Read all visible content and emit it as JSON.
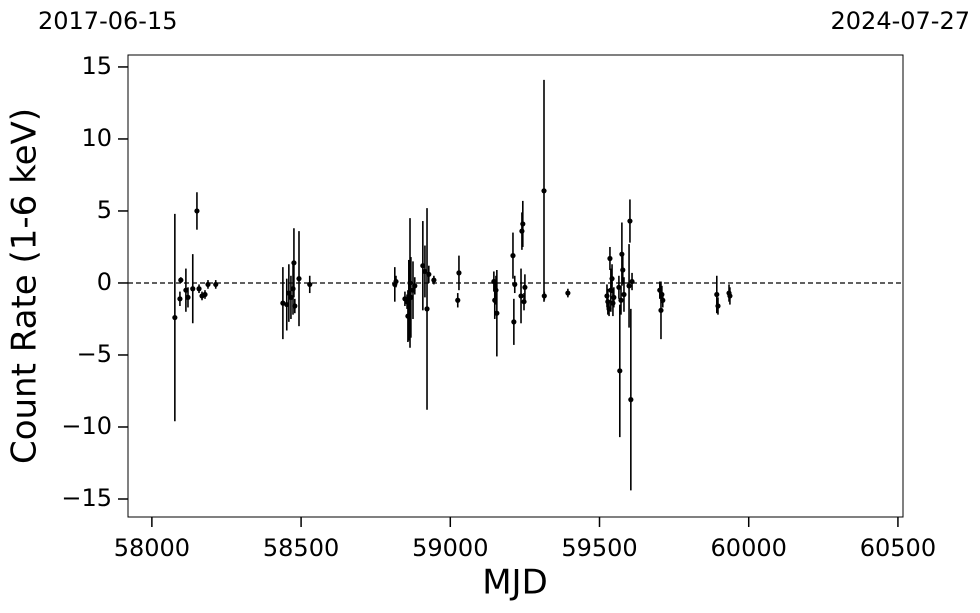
{
  "chart_data": {
    "type": "errorbar",
    "xlabel": "MJD",
    "ylabel": "Count Rate (1-6 keV)",
    "xlim": [
      57920,
      60517
    ],
    "ylim": [
      -16.25,
      15.83
    ],
    "xticks": [
      58000,
      58500,
      59000,
      59500,
      60000,
      60500
    ],
    "yticks": [
      {
        "value": -15,
        "label": "−15"
      },
      {
        "value": -10,
        "label": "−10"
      },
      {
        "value": -5,
        "label": "−5"
      },
      0,
      5,
      10,
      15
    ],
    "top_xticks": [
      {
        "value": 57920,
        "label": "2017-06-15"
      },
      {
        "value": 60517,
        "label": "2024-07-27"
      }
    ],
    "hline": 0,
    "color": "#000000",
    "x": [
      58077,
      58094,
      58097,
      58114,
      58121,
      58137,
      58151,
      58158,
      58168,
      58178,
      58188,
      58214,
      58439,
      58452,
      58459,
      58466,
      58473,
      58476,
      58479,
      58493,
      58529,
      58814,
      58818,
      58848,
      58855,
      58858,
      58861,
      58865,
      58868,
      58875,
      58881,
      58908,
      58915,
      58922,
      58928,
      58945,
      59025,
      59029,
      59146,
      59149,
      59153,
      59156,
      59210,
      59213,
      59216,
      59237,
      59240,
      59243,
      59247,
      59250,
      59314,
      59315,
      59394,
      59525,
      59528,
      59532,
      59535,
      59538,
      59542,
      59545,
      59548,
      59565,
      59568,
      59572,
      59575,
      59578,
      59582,
      59599,
      59602,
      59605,
      59609,
      59702,
      59706,
      59709,
      59712,
      59893,
      59897,
      59934,
      59937
    ],
    "values": [
      -2.4,
      -1.1,
      0.2,
      -0.5,
      -1.0,
      -0.4,
      5.0,
      -0.4,
      -0.9,
      -0.8,
      -0.1,
      -0.1,
      -1.4,
      -1.5,
      -0.7,
      -1.0,
      -0.4,
      1.4,
      -1.6,
      0.3,
      -0.1,
      -0.1,
      0.1,
      -1.1,
      -1.3,
      -2.3,
      -1.2,
      0.0,
      -1.0,
      -0.5,
      -0.2,
      1.2,
      0.8,
      -1.8,
      0.6,
      0.2,
      -1.2,
      0.7,
      0.1,
      -1.2,
      -0.5,
      -2.1,
      1.9,
      -2.7,
      -0.1,
      -0.9,
      3.6,
      4.1,
      -1.3,
      -0.3,
      6.4,
      -0.9,
      -0.7,
      -0.9,
      -1.3,
      -1.8,
      1.7,
      -0.5,
      0.3,
      -1.4,
      -1.0,
      -0.3,
      -6.1,
      -1.2,
      2.0,
      0.9,
      -0.8,
      -0.2,
      4.3,
      -8.1,
      0.1,
      -0.5,
      -1.9,
      -0.8,
      -1.2,
      -0.8,
      -1.6,
      -0.7,
      -0.9
    ],
    "errors": [
      7.2,
      0.5,
      0.2,
      1.5,
      0.7,
      2.4,
      1.3,
      0.3,
      0.3,
      0.3,
      0.3,
      0.3,
      2.5,
      1.8,
      2.0,
      1.5,
      1.8,
      2.4,
      0.5,
      3.3,
      0.6,
      1.2,
      0.4,
      0.5,
      0.5,
      1.8,
      2.8,
      4.5,
      2.8,
      2.0,
      0.6,
      3.1,
      1.8,
      7.0,
      0.6,
      0.3,
      0.5,
      1.2,
      0.7,
      1.3,
      1.0,
      3.0,
      1.6,
      1.6,
      0.6,
      1.9,
      1.3,
      1.6,
      0.6,
      0.9,
      7.7,
      0.3,
      0.3,
      0.8,
      0.9,
      0.5,
      0.8,
      1.5,
      1.0,
      0.9,
      0.7,
      0.8,
      4.6,
      1.0,
      2.2,
      1.0,
      1.2,
      2.9,
      1.5,
      6.3,
      0.6,
      0.6,
      2.0,
      0.6,
      0.5,
      1.3,
      0.6,
      0.6,
      0.6
    ]
  }
}
